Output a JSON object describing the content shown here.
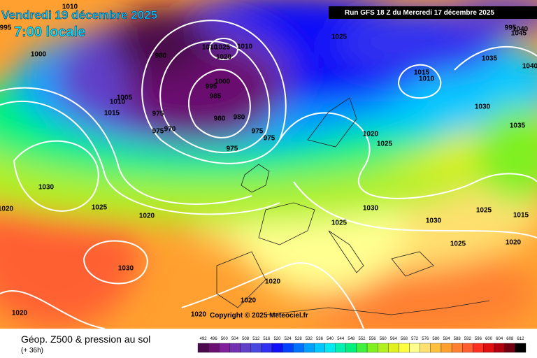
{
  "header": {
    "date": "Vendredi 19 décembre 2025",
    "time": "7:00 locale",
    "run": "Run GFS 18 Z du Mercredi 17 décembre 2025"
  },
  "copyright": "Copyright © 2025 Meteociel.fr",
  "footer": {
    "title": "Géop. Z500 & pression au sol",
    "step": "(+ 36h)"
  },
  "isobar_labels": [
    1010,
    995,
    1000,
    1005,
    1010,
    1015,
    980,
    1010,
    1025,
    1010,
    1020,
    1000,
    995,
    985,
    975,
    980,
    980,
    970,
    975,
    975,
    975,
    975,
    1025,
    995,
    1045,
    1040,
    1035,
    1040,
    1015,
    1010,
    1030,
    1035,
    1020,
    1025,
    1030,
    1025,
    1020,
    1020,
    1030,
    1025,
    1030,
    1025,
    1015,
    1020,
    1025,
    1030,
    1020,
    1020,
    1020,
    1020
  ],
  "legend": {
    "scale": [
      492,
      496,
      500,
      504,
      508,
      512,
      516,
      520,
      524,
      528,
      532,
      536,
      540,
      544,
      548,
      552,
      556,
      560,
      564,
      568,
      572,
      576,
      580,
      584,
      588,
      592,
      596,
      600,
      604,
      608,
      612
    ],
    "colors": [
      "#4b0a4b",
      "#6b1070",
      "#80209a",
      "#7030b0",
      "#6040c8",
      "#4848e0",
      "#3030f0",
      "#1010f8",
      "#0040ff",
      "#0070ff",
      "#00a0ff",
      "#00c8ff",
      "#00e8f0",
      "#00f0b0",
      "#00f080",
      "#40f040",
      "#80f020",
      "#b0f020",
      "#e0f020",
      "#ffff40",
      "#ffff90",
      "#ffe070",
      "#ffc040",
      "#ffa030",
      "#ff8030",
      "#ff6030",
      "#ff3020",
      "#e01010",
      "#b00010",
      "#700010",
      "#000000"
    ]
  }
}
